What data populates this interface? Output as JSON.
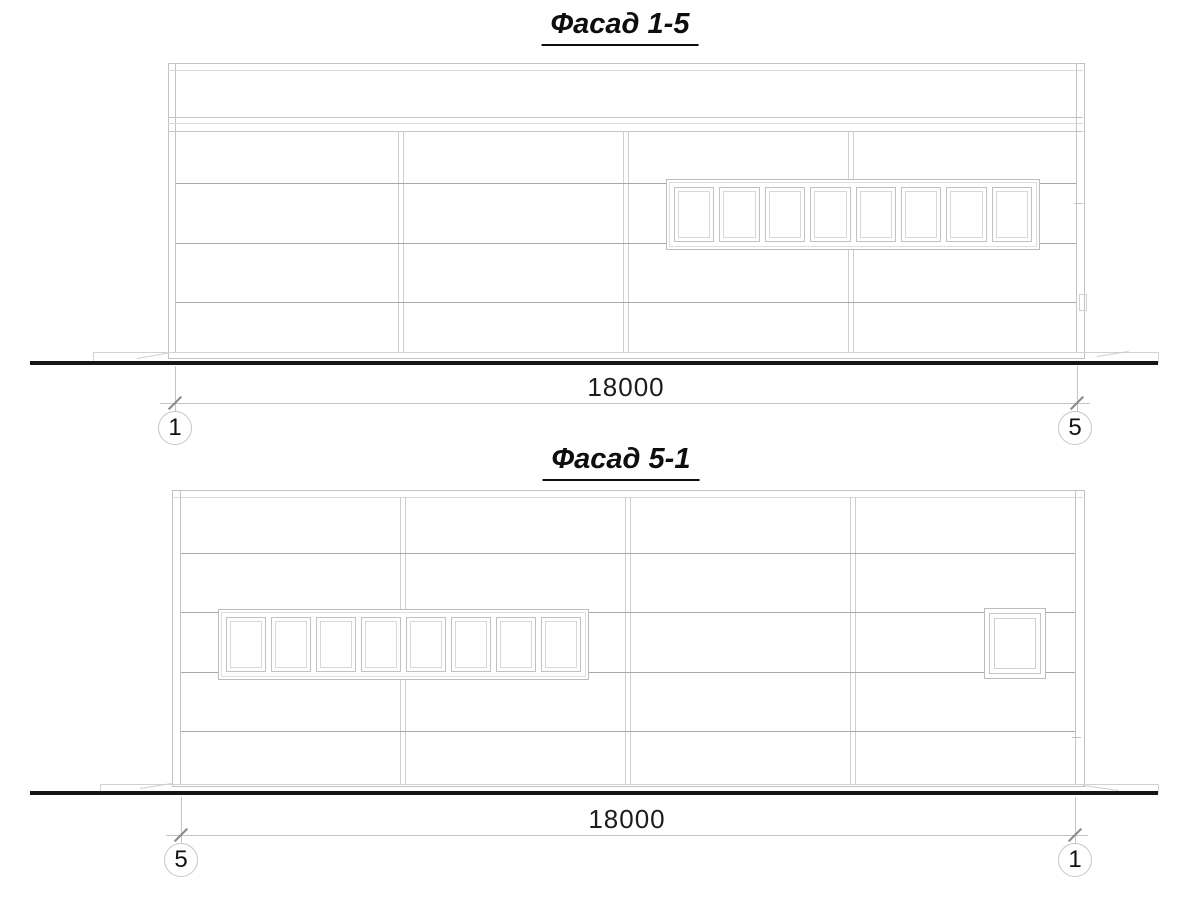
{
  "drawing": {
    "facades": [
      {
        "title": "Фасад 1-5",
        "dimension_label": "18000",
        "axis_left_label": "1",
        "axis_right_label": "5",
        "ribbon_window_panes": 8
      },
      {
        "title": "Фасад 5-1",
        "dimension_label": "18000",
        "axis_left_label": "5",
        "axis_right_label": "1",
        "ribbon_window_panes": 8
      }
    ],
    "colors": {
      "line_light": "#c4c4c4",
      "line_mid": "#a9a9a9",
      "ground_line": "#161616",
      "text": "#111111"
    }
  }
}
